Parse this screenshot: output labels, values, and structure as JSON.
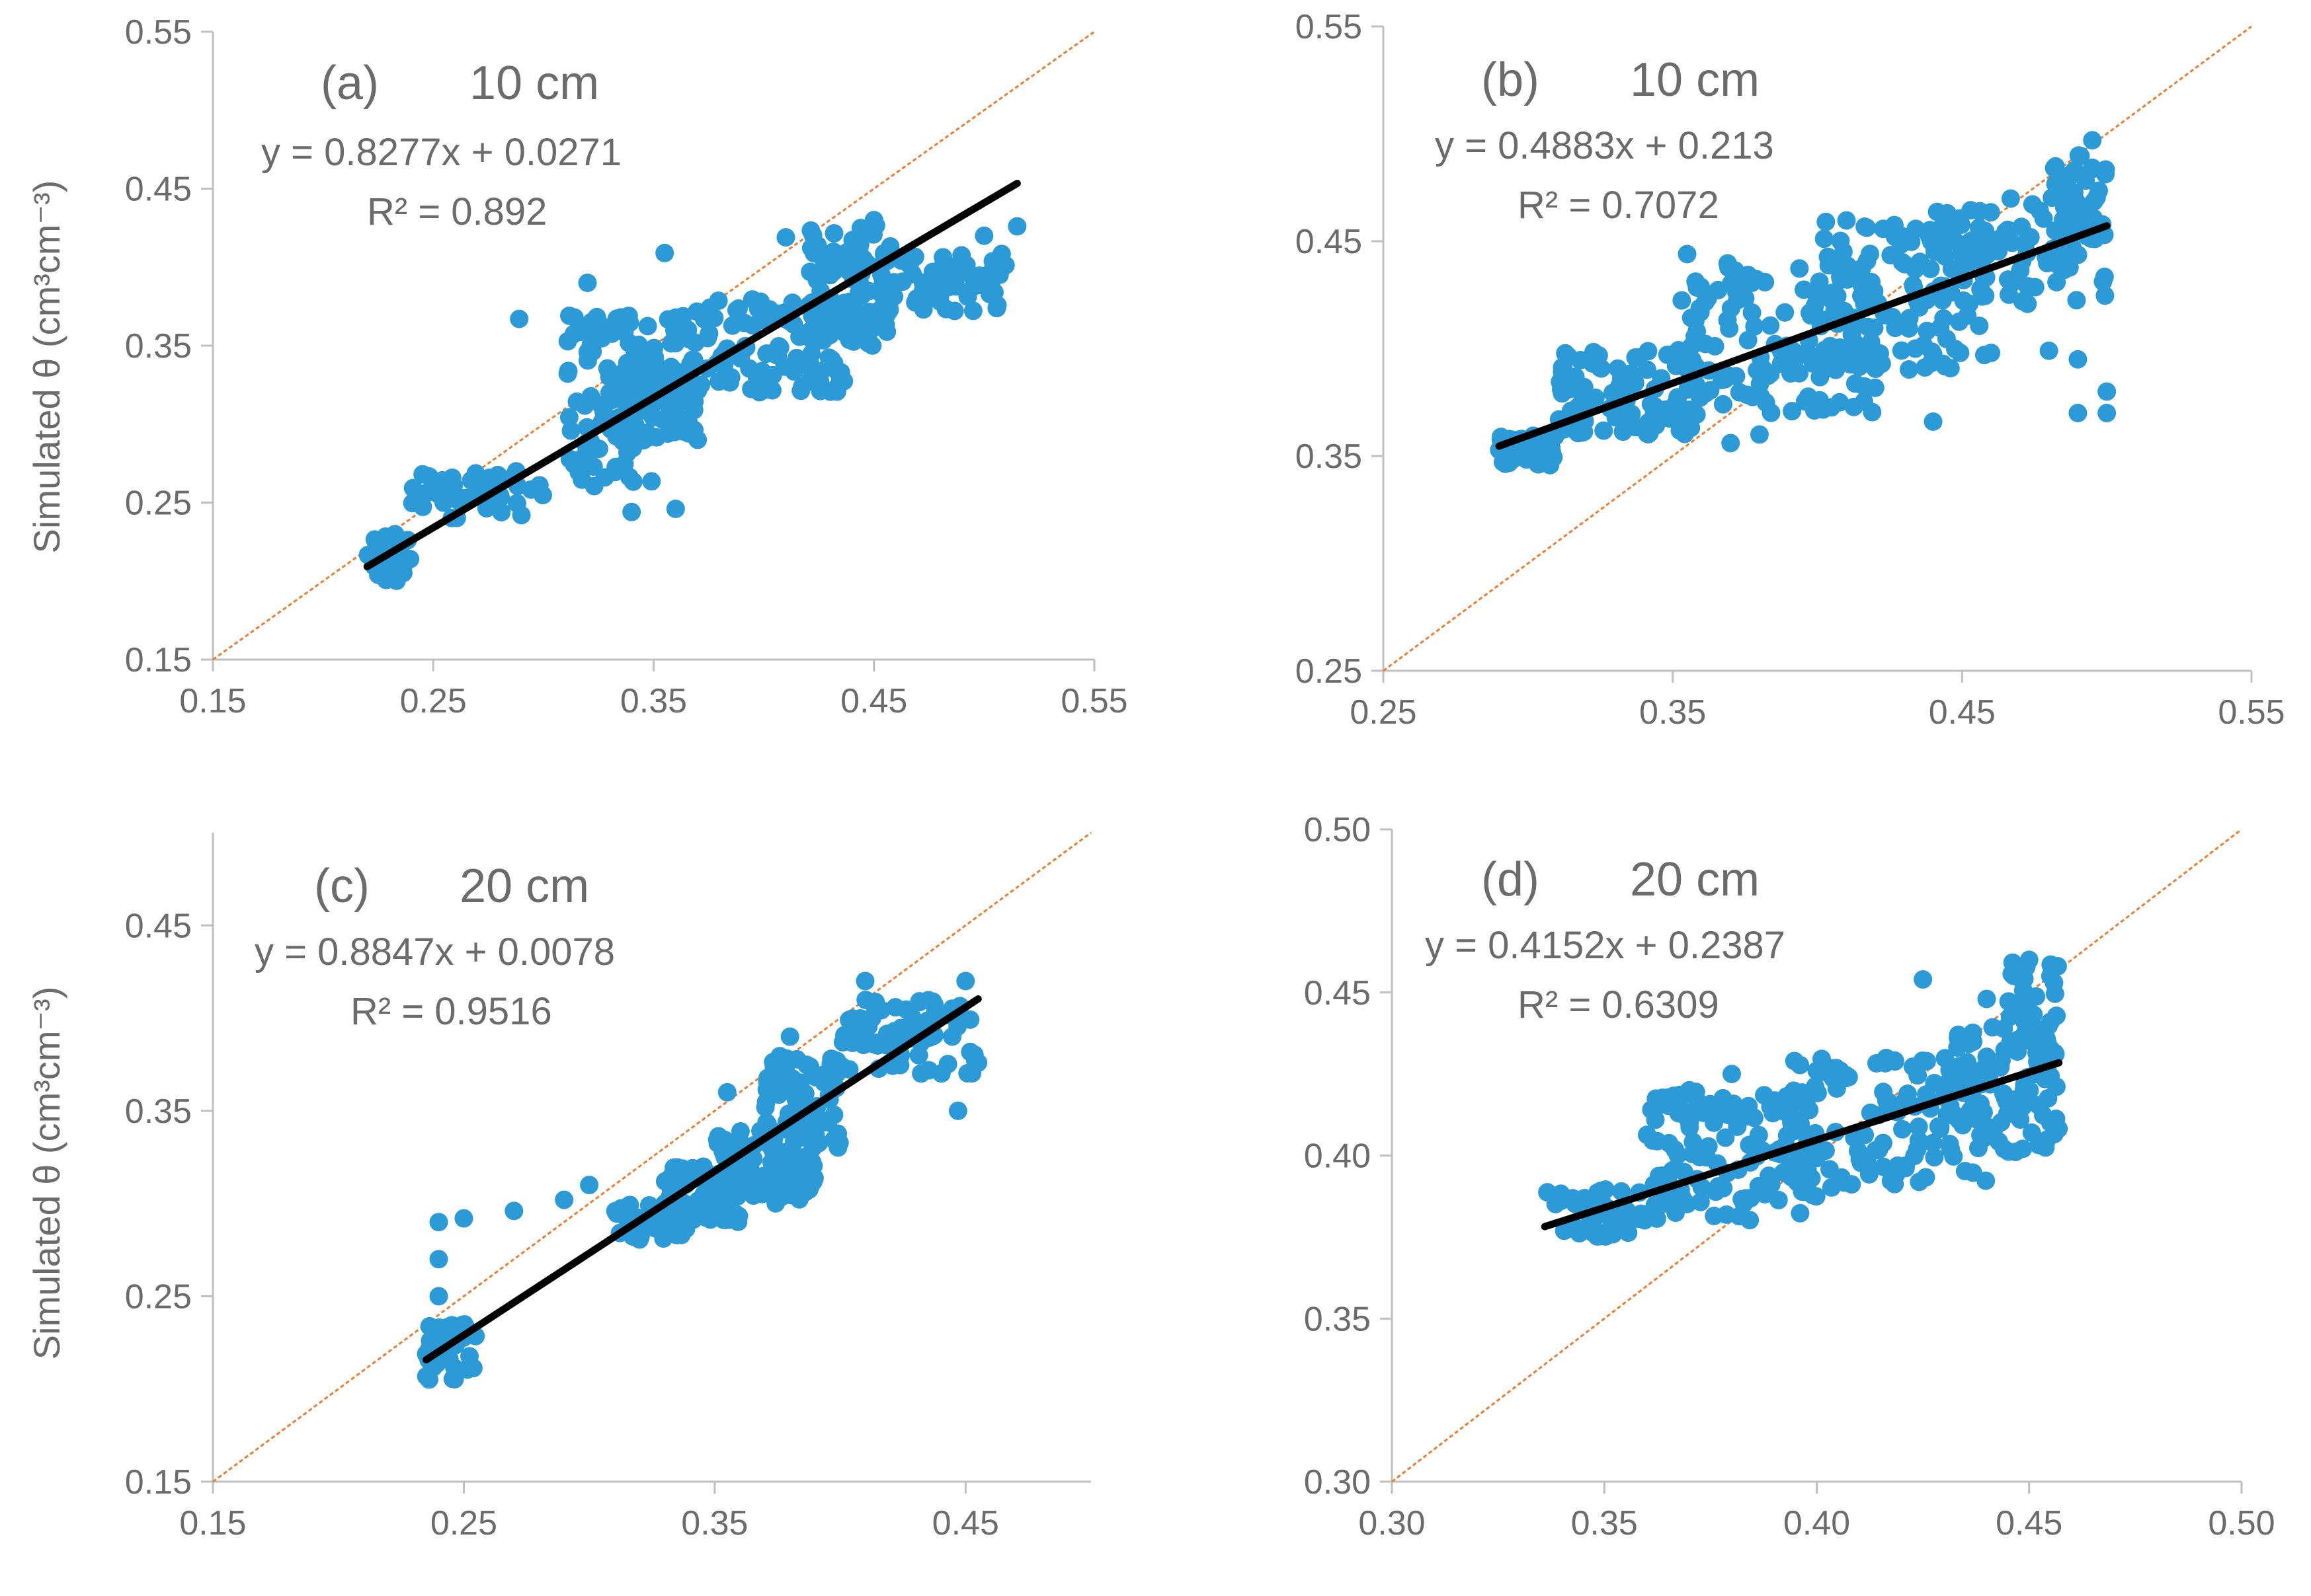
{
  "colors": {
    "points": "#2B9AD6",
    "trendline": "#000000",
    "one_to_one": "#ED7D31",
    "axis": "#bfbfbf",
    "text": "#6b6b6b"
  },
  "chart_data": [
    {
      "type": "scatter",
      "panel_label": "(a)",
      "depth_label": "10 cm",
      "equation": "y = 0.8277x + 0.0271",
      "r2_text": "R² = 0.892",
      "ylabel": "Simulated θ (cm³cm⁻³)",
      "xlabel": "",
      "xlim": [
        0.15,
        0.55
      ],
      "ylim": [
        0.15,
        0.55
      ],
      "xticks": [
        "0.15",
        "0.25",
        "0.35",
        "0.45",
        "0.55"
      ],
      "yticks": [
        "0.15",
        "0.25",
        "0.35",
        "0.45",
        "0.55"
      ],
      "trendline": {
        "slope": 0.8277,
        "intercept": 0.0271,
        "x_range": [
          0.22,
          0.515
        ]
      },
      "one_to_one": true,
      "grid": false,
      "clusters": [
        {
          "x": [
            0.22,
            0.24
          ],
          "y": [
            0.2,
            0.23
          ],
          "n": 40
        },
        {
          "x": [
            0.24,
            0.3
          ],
          "y": [
            0.24,
            0.27
          ],
          "n": 40
        },
        {
          "x": [
            0.31,
            0.35
          ],
          "y": [
            0.26,
            0.37
          ],
          "n": 100
        },
        {
          "x": [
            0.33,
            0.37
          ],
          "y": [
            0.29,
            0.34
          ],
          "n": 60
        },
        {
          "x": [
            0.35,
            0.44
          ],
          "y": [
            0.32,
            0.38
          ],
          "n": 120
        },
        {
          "x": [
            0.42,
            0.46
          ],
          "y": [
            0.35,
            0.43
          ],
          "n": 80
        },
        {
          "x": [
            0.44,
            0.51
          ],
          "y": [
            0.37,
            0.41
          ],
          "n": 70
        }
      ],
      "points": [
        {
          "x": 0.289,
          "y": 0.367
        },
        {
          "x": 0.355,
          "y": 0.409
        },
        {
          "x": 0.34,
          "y": 0.244
        },
        {
          "x": 0.36,
          "y": 0.246
        },
        {
          "x": 0.41,
          "y": 0.419
        },
        {
          "x": 0.45,
          "y": 0.43
        },
        {
          "x": 0.5,
          "y": 0.42
        },
        {
          "x": 0.515,
          "y": 0.426
        },
        {
          "x": 0.29,
          "y": 0.242
        },
        {
          "x": 0.32,
          "y": 0.39
        },
        {
          "x": 0.33,
          "y": 0.32
        },
        {
          "x": 0.37,
          "y": 0.29
        }
      ]
    },
    {
      "type": "scatter",
      "panel_label": "(b)",
      "depth_label": "10 cm",
      "equation": "y = 0.4883x + 0.213",
      "r2_text": "R² = 0.7072",
      "ylabel": "",
      "xlabel": "",
      "xlim": [
        0.25,
        0.55
      ],
      "ylim": [
        0.25,
        0.55
      ],
      "xticks": [
        "0.25",
        "0.35",
        "0.45",
        "0.55"
      ],
      "yticks": [
        "0.25",
        "0.35",
        "0.45",
        "0.55"
      ],
      "trendline": {
        "slope": 0.4883,
        "intercept": 0.213,
        "x_range": [
          0.29,
          0.5
        ]
      },
      "one_to_one": true,
      "grid": false,
      "clusters": [
        {
          "x": [
            0.29,
            0.31
          ],
          "y": [
            0.345,
            0.36
          ],
          "n": 40
        },
        {
          "x": [
            0.31,
            0.36
          ],
          "y": [
            0.36,
            0.4
          ],
          "n": 100
        },
        {
          "x": [
            0.35,
            0.42
          ],
          "y": [
            0.37,
            0.44
          ],
          "n": 140
        },
        {
          "x": [
            0.4,
            0.46
          ],
          "y": [
            0.39,
            0.46
          ],
          "n": 120
        },
        {
          "x": [
            0.44,
            0.5
          ],
          "y": [
            0.42,
            0.47
          ],
          "n": 90
        },
        {
          "x": [
            0.48,
            0.5
          ],
          "y": [
            0.45,
            0.49
          ],
          "n": 40
        }
      ],
      "points": [
        {
          "x": 0.355,
          "y": 0.444
        },
        {
          "x": 0.44,
          "y": 0.366
        },
        {
          "x": 0.49,
          "y": 0.37
        },
        {
          "x": 0.5,
          "y": 0.37
        },
        {
          "x": 0.495,
          "y": 0.497
        },
        {
          "x": 0.42,
          "y": 0.398
        },
        {
          "x": 0.46,
          "y": 0.398
        },
        {
          "x": 0.48,
          "y": 0.399
        },
        {
          "x": 0.37,
          "y": 0.356
        },
        {
          "x": 0.38,
          "y": 0.36
        },
        {
          "x": 0.49,
          "y": 0.395
        },
        {
          "x": 0.5,
          "y": 0.38
        }
      ]
    },
    {
      "type": "scatter",
      "panel_label": "(c)",
      "depth_label": "20 cm",
      "equation": "y = 0.8847x + 0.0078",
      "r2_text": "R² = 0.9516",
      "ylabel": "Simulated θ (cm³cm⁻³)",
      "xlabel": "",
      "xlim": [
        0.15,
        0.5
      ],
      "ylim": [
        0.15,
        0.5
      ],
      "xticks": [
        "0.15",
        "0.25",
        "0.35",
        "0.45"
      ],
      "yticks": [
        "0.15",
        "0.25",
        "0.35",
        "0.45"
      ],
      "trendline": {
        "slope": 0.8847,
        "intercept": 0.0078,
        "x_range": [
          0.235,
          0.455
        ]
      },
      "one_to_one": true,
      "grid": false,
      "clusters": [
        {
          "x": [
            0.235,
            0.255
          ],
          "y": [
            0.205,
            0.235
          ],
          "n": 40
        },
        {
          "x": [
            0.31,
            0.34
          ],
          "y": [
            0.28,
            0.3
          ],
          "n": 40
        },
        {
          "x": [
            0.33,
            0.36
          ],
          "y": [
            0.29,
            0.32
          ],
          "n": 80
        },
        {
          "x": [
            0.35,
            0.39
          ],
          "y": [
            0.3,
            0.34
          ],
          "n": 100
        },
        {
          "x": [
            0.37,
            0.4
          ],
          "y": [
            0.33,
            0.38
          ],
          "n": 80
        },
        {
          "x": [
            0.4,
            0.455
          ],
          "y": [
            0.37,
            0.41
          ],
          "n": 80
        }
      ],
      "points": [
        {
          "x": 0.24,
          "y": 0.29
        },
        {
          "x": 0.25,
          "y": 0.292
        },
        {
          "x": 0.27,
          "y": 0.296
        },
        {
          "x": 0.29,
          "y": 0.302
        },
        {
          "x": 0.3,
          "y": 0.31
        },
        {
          "x": 0.447,
          "y": 0.35
        },
        {
          "x": 0.41,
          "y": 0.42
        },
        {
          "x": 0.38,
          "y": 0.39
        },
        {
          "x": 0.24,
          "y": 0.27
        },
        {
          "x": 0.24,
          "y": 0.25
        },
        {
          "x": 0.355,
          "y": 0.36
        },
        {
          "x": 0.45,
          "y": 0.42
        }
      ]
    },
    {
      "type": "scatter",
      "panel_label": "(d)",
      "depth_label": "20 cm",
      "equation": "y = 0.4152x + 0.2387",
      "r2_text": "R² = 0.6309",
      "ylabel": "",
      "xlabel": "",
      "xlim": [
        0.3,
        0.5
      ],
      "ylim": [
        0.3,
        0.5
      ],
      "xticks": [
        "0.30",
        "0.35",
        "0.40",
        "0.45",
        "0.50"
      ],
      "yticks": [
        "0.30",
        "0.35",
        "0.40",
        "0.45",
        "0.50"
      ],
      "trendline": {
        "slope": 0.4152,
        "intercept": 0.2387,
        "x_range": [
          0.336,
          0.457
        ]
      },
      "one_to_one": true,
      "grid": false,
      "clusters": [
        {
          "x": [
            0.336,
            0.36
          ],
          "y": [
            0.375,
            0.39
          ],
          "n": 50
        },
        {
          "x": [
            0.36,
            0.4
          ],
          "y": [
            0.38,
            0.42
          ],
          "n": 120
        },
        {
          "x": [
            0.39,
            0.44
          ],
          "y": [
            0.39,
            0.43
          ],
          "n": 130
        },
        {
          "x": [
            0.43,
            0.457
          ],
          "y": [
            0.4,
            0.44
          ],
          "n": 80
        },
        {
          "x": [
            0.445,
            0.457
          ],
          "y": [
            0.43,
            0.46
          ],
          "n": 40
        }
      ],
      "points": [
        {
          "x": 0.425,
          "y": 0.454
        },
        {
          "x": 0.45,
          "y": 0.46
        },
        {
          "x": 0.455,
          "y": 0.455
        },
        {
          "x": 0.44,
          "y": 0.448
        },
        {
          "x": 0.455,
          "y": 0.41
        },
        {
          "x": 0.37,
          "y": 0.42
        },
        {
          "x": 0.38,
          "y": 0.425
        },
        {
          "x": 0.4,
          "y": 0.426
        }
      ]
    }
  ]
}
